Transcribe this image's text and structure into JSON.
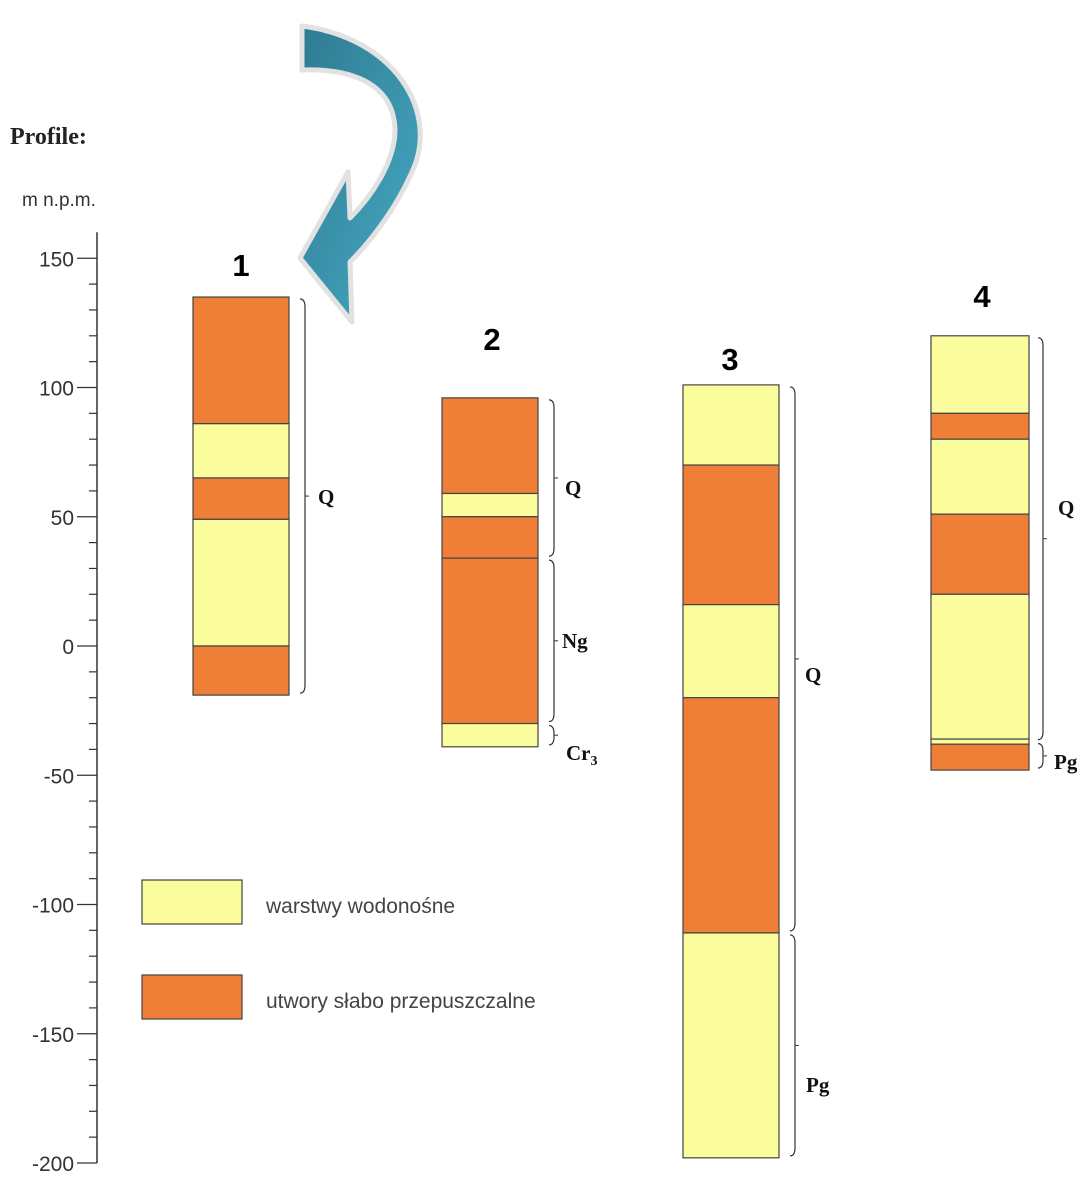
{
  "diagram": {
    "title": "Profile:",
    "unit_label": "m  n.p.m.",
    "colors": {
      "aquifer": "#fbfc9c",
      "aquitard": "#ef7f37",
      "outline": "#444444",
      "arrow_light": "#4aaac6",
      "arrow_dark": "#2f7b91"
    },
    "axis": {
      "min": -200,
      "max": 150,
      "major_step": 50,
      "minor_step": 10,
      "tick_labels": [
        "150",
        "100",
        "50",
        "0",
        "-50",
        "-100",
        "-150",
        "-200"
      ]
    },
    "legend": [
      {
        "type": "aquifer",
        "label": "warstwy wodonośne"
      },
      {
        "type": "aquitard",
        "label": "utwory słabo przepuszczalne"
      }
    ],
    "profiles": [
      {
        "number": "1",
        "layers": [
          {
            "top": 135,
            "bottom": 86,
            "type": "aquitard"
          },
          {
            "top": 86,
            "bottom": 65,
            "type": "aquifer"
          },
          {
            "top": 65,
            "bottom": 49,
            "type": "aquitard"
          },
          {
            "top": 49,
            "bottom": 0,
            "type": "aquifer"
          },
          {
            "top": 0,
            "bottom": -19,
            "type": "aquitard"
          }
        ],
        "units": [
          {
            "label": "Q",
            "top": 135,
            "bottom": -19
          }
        ]
      },
      {
        "number": "2",
        "layers": [
          {
            "top": 96,
            "bottom": 59,
            "type": "aquitard"
          },
          {
            "top": 59,
            "bottom": 50,
            "type": "aquifer"
          },
          {
            "top": 50,
            "bottom": 34,
            "type": "aquitard"
          },
          {
            "top": 34,
            "bottom": -30,
            "type": "aquitard"
          },
          {
            "top": -30,
            "bottom": -39,
            "type": "aquifer"
          }
        ],
        "units": [
          {
            "label": "Q",
            "top": 96,
            "bottom": 34
          },
          {
            "label": "Ng",
            "top": 34,
            "bottom": -30
          },
          {
            "label": "Cr",
            "sub": "3",
            "top": -30,
            "bottom": -39
          }
        ]
      },
      {
        "number": "3",
        "layers": [
          {
            "top": 101,
            "bottom": 70,
            "type": "aquifer"
          },
          {
            "top": 70,
            "bottom": 16,
            "type": "aquitard"
          },
          {
            "top": 16,
            "bottom": -20,
            "type": "aquifer"
          },
          {
            "top": -20,
            "bottom": -111,
            "type": "aquitard"
          },
          {
            "top": -111,
            "bottom": -198,
            "type": "aquifer"
          }
        ],
        "units": [
          {
            "label": "Q",
            "top": 101,
            "bottom": -111
          },
          {
            "label": "Pg",
            "top": -111,
            "bottom": -198
          }
        ]
      },
      {
        "number": "4",
        "layers": [
          {
            "top": 120,
            "bottom": 90,
            "type": "aquifer"
          },
          {
            "top": 90,
            "bottom": 80,
            "type": "aquitard"
          },
          {
            "top": 80,
            "bottom": 51,
            "type": "aquifer"
          },
          {
            "top": 51,
            "bottom": 20,
            "type": "aquitard"
          },
          {
            "top": 20,
            "bottom": -36,
            "type": "aquifer"
          },
          {
            "top": -36,
            "bottom": -38,
            "type": "aquifer"
          },
          {
            "top": -38,
            "bottom": -48,
            "type": "aquitard"
          }
        ],
        "units": [
          {
            "label": "Q",
            "top": 120,
            "bottom": -37
          },
          {
            "label": "Pg",
            "top": -37,
            "bottom": -48
          }
        ]
      }
    ]
  }
}
